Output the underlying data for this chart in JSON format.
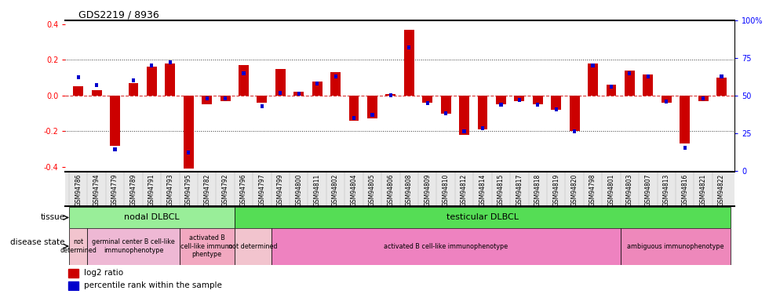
{
  "title": "GDS2219 / 8936",
  "samples": [
    "GSM94786",
    "GSM94794",
    "GSM94779",
    "GSM94789",
    "GSM94791",
    "GSM94793",
    "GSM94795",
    "GSM94782",
    "GSM94792",
    "GSM94796",
    "GSM94797",
    "GSM94799",
    "GSM94800",
    "GSM94811",
    "GSM94802",
    "GSM94804",
    "GSM94805",
    "GSM94806",
    "GSM94808",
    "GSM94809",
    "GSM94810",
    "GSM94812",
    "GSM94814",
    "GSM94815",
    "GSM94817",
    "GSM94818",
    "GSM94819",
    "GSM94820",
    "GSM94798",
    "GSM94801",
    "GSM94803",
    "GSM94807",
    "GSM94813",
    "GSM94816",
    "GSM94821",
    "GSM94822"
  ],
  "log2_ratio": [
    0.05,
    0.03,
    -0.28,
    0.07,
    0.16,
    0.18,
    -0.41,
    -0.05,
    -0.03,
    0.17,
    -0.04,
    0.15,
    0.02,
    0.08,
    0.13,
    -0.14,
    -0.13,
    0.01,
    0.37,
    -0.04,
    -0.1,
    -0.22,
    -0.19,
    -0.05,
    -0.03,
    -0.05,
    -0.08,
    -0.2,
    0.18,
    0.06,
    0.14,
    0.12,
    -0.04,
    -0.27,
    -0.03,
    0.1
  ],
  "percentile": [
    62,
    57,
    14,
    60,
    70,
    72,
    12,
    48,
    48,
    65,
    43,
    52,
    51,
    58,
    63,
    35,
    37,
    50,
    82,
    45,
    38,
    26,
    28,
    44,
    47,
    44,
    41,
    26,
    70,
    56,
    65,
    63,
    46,
    15,
    48,
    63
  ],
  "tissue_groups": [
    {
      "label": "nodal DLBCL",
      "start": 0,
      "end": 8,
      "color": "#99EE99"
    },
    {
      "label": "testicular DLBCL",
      "start": 9,
      "end": 35,
      "color": "#55DD55"
    }
  ],
  "disease_groups": [
    {
      "label": "not\ndetermined",
      "start": 0,
      "end": 0,
      "color": "#F2C4CE"
    },
    {
      "label": "germinal center B cell-like\nimmunophenotype",
      "start": 1,
      "end": 5,
      "color": "#EEB8D4"
    },
    {
      "label": "activated B\ncell-like immuno\nphentype",
      "start": 6,
      "end": 8,
      "color": "#F2A8C0"
    },
    {
      "label": "not determined",
      "start": 9,
      "end": 10,
      "color": "#F2C4CE"
    },
    {
      "label": "activated B cell-like immunophenotype",
      "start": 11,
      "end": 29,
      "color": "#EE82C0"
    },
    {
      "label": "ambiguous immunophenotype",
      "start": 30,
      "end": 35,
      "color": "#EE88BB"
    }
  ],
  "bar_color_red": "#CC0000",
  "bar_color_blue": "#0000CC",
  "ylim": [
    -0.42,
    0.42
  ],
  "yticks_left": [
    -0.4,
    -0.2,
    0.0,
    0.2,
    0.4
  ],
  "right_tick_positions": [
    -0.42,
    -0.21,
    0.0,
    0.21,
    0.42
  ],
  "right_tick_labels": [
    "0",
    "25",
    "50",
    "75",
    "100%"
  ],
  "hline_color": "#CC0000",
  "dotted_color": "#333333"
}
